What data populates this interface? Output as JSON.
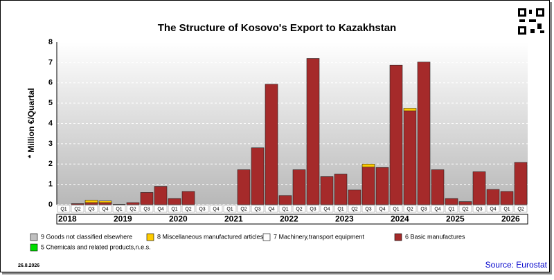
{
  "chart_data": {
    "type": "stacked-bar",
    "title": "The Structure of Kosovo's Export to Kazakhstan",
    "y_label": "* Million €/Quartal",
    "categories": [
      "Q1",
      "Q2",
      "Q3",
      "Q4",
      "Q1",
      "Q2",
      "Q3",
      "Q4",
      "Q1",
      "Q2",
      "Q3",
      "Q4",
      "Q1",
      "Q2",
      "Q3",
      "Q4",
      "Q1",
      "Q2",
      "Q3",
      "Q4",
      "Q1",
      "Q2",
      "Q3",
      "Q4",
      "Q1",
      "Q2",
      "Q3",
      "Q4",
      "Q1",
      "Q2",
      "Q3",
      "Q4",
      "Q1",
      "Q2"
    ],
    "groups": [
      {
        "label": "2018",
        "count": 4
      },
      {
        "label": "2019",
        "count": 4
      },
      {
        "label": "2020",
        "count": 4
      },
      {
        "label": "2021",
        "count": 4
      },
      {
        "label": "2022",
        "count": 4
      },
      {
        "label": "2023",
        "count": 4
      },
      {
        "label": "2024",
        "count": 4
      },
      {
        "label": "2025",
        "count": 4
      },
      {
        "label": "2026",
        "count": 2
      }
    ],
    "series": [
      {
        "name": "9 Goods not classified elsewhere",
        "color": "#c0c0c0",
        "values": [
          0,
          0,
          0,
          0,
          0,
          0,
          0,
          0,
          0,
          0,
          0,
          0,
          0,
          0,
          0,
          0,
          0,
          0,
          0,
          0,
          0,
          0,
          0,
          0,
          0,
          0,
          0,
          0,
          0,
          0,
          0,
          0,
          0,
          0
        ]
      },
      {
        "name": "8 Miscellaneous manufactured articles",
        "color": "#ffcc00",
        "values": [
          0,
          0,
          0.12,
          0.08,
          0,
          0,
          0,
          0,
          0,
          0,
          0,
          0,
          0,
          0,
          0,
          0,
          0,
          0,
          0,
          0,
          0,
          0,
          0.15,
          0,
          0,
          0.13,
          0,
          0,
          0,
          0,
          0,
          0,
          0,
          0
        ]
      },
      {
        "name": "7 Machinery,transport equipment",
        "color": "#ffffff",
        "values": [
          0,
          0,
          0,
          0,
          0,
          0,
          0,
          0,
          0,
          0,
          0,
          0,
          0,
          0,
          0,
          0,
          0,
          0,
          0,
          0,
          0,
          0,
          0,
          0,
          0,
          0,
          0,
          0,
          0,
          0,
          0,
          0,
          0,
          0
        ]
      },
      {
        "name": "6 Basic manufactures",
        "color": "#a52a2a",
        "values": [
          0,
          0.05,
          0.1,
          0.1,
          0.02,
          0.1,
          0.6,
          0.9,
          0.3,
          0.65,
          0,
          0,
          0,
          1.72,
          2.8,
          5.93,
          0.45,
          1.72,
          7.2,
          1.38,
          1.5,
          0.72,
          1.85,
          1.83,
          6.87,
          4.62,
          7.02,
          1.72,
          0.3,
          0.15,
          1.62,
          0.75,
          0.65,
          2.08
        ]
      },
      {
        "name": "5 Chemicals and related products,n.e.s.",
        "color": "#00dd00",
        "values": [
          0,
          0,
          0,
          0,
          0,
          0,
          0,
          0,
          0,
          0,
          0,
          0,
          0,
          0,
          0,
          0,
          0,
          0,
          0,
          0,
          0,
          0,
          0,
          0,
          0,
          0,
          0,
          0,
          0,
          0,
          0,
          0,
          0,
          0
        ]
      }
    ],
    "ylim": [
      0,
      8
    ],
    "yticks": [
      0,
      1,
      2,
      3,
      4,
      5,
      6,
      7,
      8
    ],
    "grid": true,
    "date": "26.8.2026",
    "source": "Source: Eurostat"
  }
}
